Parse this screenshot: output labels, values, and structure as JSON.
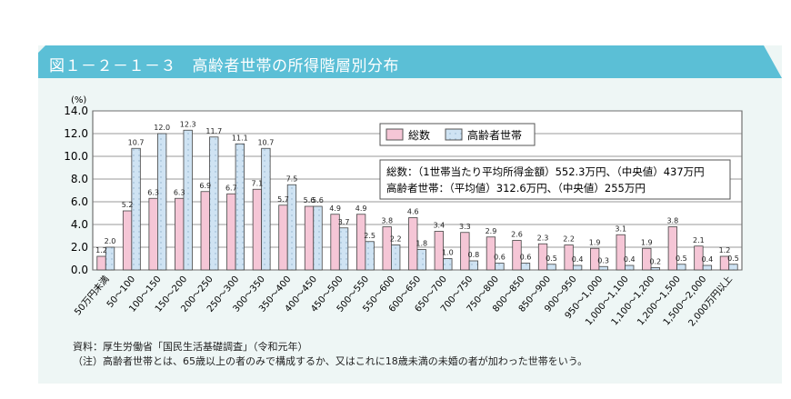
{
  "title": "図１－２－１－３　高齢者世帯の所得階層別分布",
  "chart_data": {
    "type": "bar",
    "ylabel": "(%)",
    "ylim": [
      0,
      14
    ],
    "yticks": [
      "0.0",
      "2.0",
      "4.0",
      "6.0",
      "8.0",
      "10.0",
      "12.0",
      "14.0"
    ],
    "grid": true,
    "legend_placement": "top-right",
    "categories": [
      "50万円未満",
      "50～100",
      "100～150",
      "150～200",
      "200～250",
      "250～300",
      "300～350",
      "350～400",
      "400～450",
      "450～500",
      "500～550",
      "550～600",
      "600～650",
      "650～700",
      "700～750",
      "750～800",
      "800～850",
      "850～900",
      "900～950",
      "950～1,000",
      "1,000～1,100",
      "1,100～1,200",
      "1,200～1,500",
      "1,500～2,000",
      "2,000万円以上"
    ],
    "series": [
      {
        "name": "総数",
        "color": "#f5c6d6",
        "values": [
          1.2,
          5.2,
          6.3,
          6.3,
          6.9,
          6.7,
          7.1,
          5.7,
          5.6,
          4.9,
          4.9,
          3.8,
          4.6,
          3.4,
          3.3,
          2.9,
          2.6,
          2.3,
          2.2,
          1.9,
          3.1,
          1.9,
          3.8,
          2.1,
          1.2
        ]
      },
      {
        "name": "高齢者世帯",
        "color": "#cfe3f3",
        "values": [
          2.0,
          10.7,
          12.0,
          12.3,
          11.7,
          11.1,
          10.7,
          7.5,
          5.6,
          3.7,
          2.5,
          2.2,
          1.8,
          1.0,
          0.8,
          0.6,
          0.6,
          0.5,
          0.4,
          0.3,
          0.4,
          0.2,
          0.5,
          0.4,
          0.5
        ]
      }
    ],
    "annotation": [
      "総数：（1世帯当たり平均所得金額）552.3万円、（中央値）437万円",
      "高齢者世帯：（平均値）312.6万円、（中央値）255万円"
    ]
  },
  "source": "資料：厚生労働省「国民生活基礎調査」（令和元年）",
  "note": "（注）高齢者世帯とは、65歳以上の者のみで構成するか、又はこれに18歳未満の未婚の者が加わった世帯をいう。"
}
